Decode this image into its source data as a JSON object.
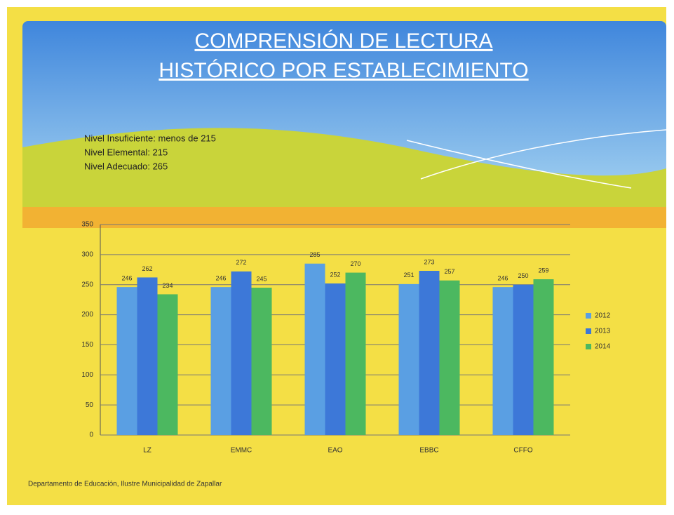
{
  "header": {
    "title_line1": "COMPRENSIÓN DE LECTURA",
    "title_line2": "HISTÓRICO POR ESTABLECIMIENTO"
  },
  "notes": [
    "Nivel Insuficiente: menos de 215",
    "Nivel Elemental: 215",
    "Nivel Adecuado: 265"
  ],
  "footer": "Departamento de Educación, Ilustre Municipalidad de Zapallar",
  "chart_data": {
    "type": "bar",
    "categories": [
      "LZ",
      "EMMC",
      "EAO",
      "EBBC",
      "CFFO"
    ],
    "series": [
      {
        "name": "2012",
        "color": "#5a9fe3",
        "values": [
          246,
          246,
          285,
          251,
          246
        ]
      },
      {
        "name": "2013",
        "color": "#3d78d8",
        "values": [
          262,
          272,
          252,
          273,
          250
        ]
      },
      {
        "name": "2014",
        "color": "#4cb860",
        "values": [
          234,
          245,
          270,
          257,
          259
        ]
      }
    ],
    "ylim": [
      0,
      350
    ],
    "yticks": [
      0,
      50,
      100,
      150,
      200,
      250,
      300,
      350
    ],
    "grid": true,
    "legend": "right"
  }
}
